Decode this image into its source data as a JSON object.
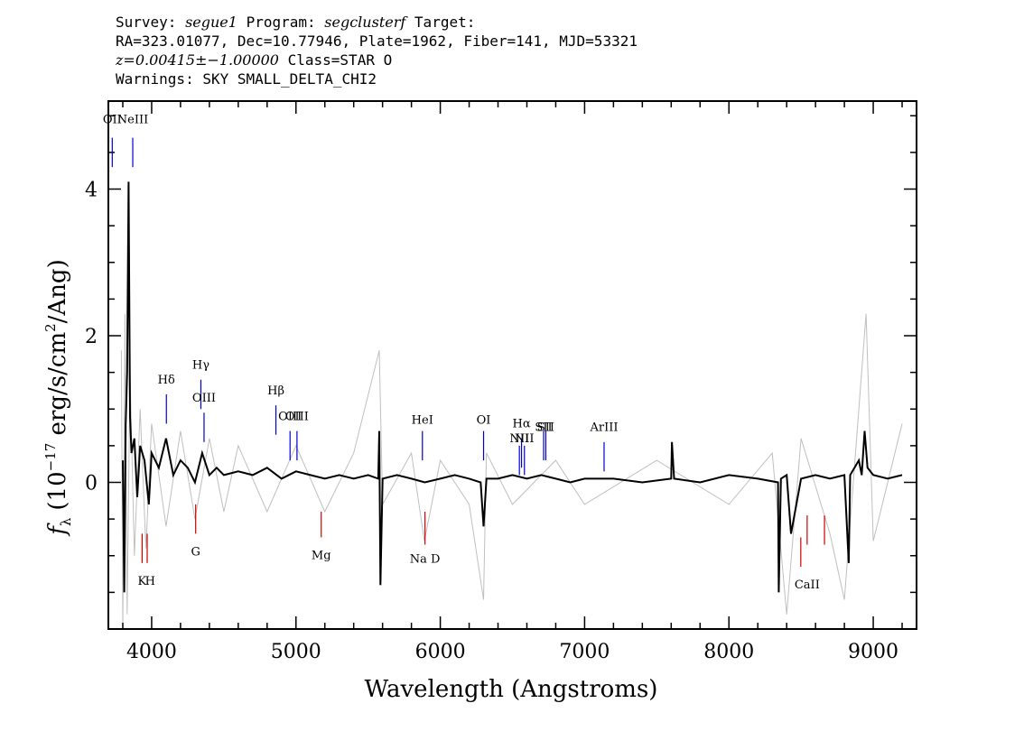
{
  "header": {
    "survey_label": "Survey:",
    "survey": "segue1",
    "program_label": "Program:",
    "program": "segclusterf",
    "target_label": "Target:",
    "line2": "RA=323.01077, Dec=10.77946, Plate=1962, Fiber=141, MJD=53321",
    "redshift": "z=0.00415±−1.00000",
    "class_text": "Class=STAR O",
    "warnings": "Warnings: SKY SMALL_DELTA_CHI2"
  },
  "chart_data": {
    "type": "line",
    "xlabel": "Wavelength (Angstroms)",
    "ylabel_main": "f",
    "ylabel_sub": "λ",
    "ylabel_unit": "(10",
    "ylabel_exp": "−17",
    "ylabel_rest1": " erg/s/cm",
    "ylabel_exp2": "2",
    "ylabel_rest2": "/Ang)",
    "xlim": [
      3700,
      9300
    ],
    "ylim": [
      -2.0,
      5.2
    ],
    "xticks": [
      4000,
      5000,
      6000,
      7000,
      8000,
      9000
    ],
    "yticks": [
      0,
      2,
      4
    ],
    "series": [
      {
        "color": "#000000",
        "x": [
          3800,
          3810,
          3820,
          3830,
          3840,
          3850,
          3860,
          3880,
          3900,
          3920,
          3950,
          3980,
          4000,
          4050,
          4100,
          4150,
          4200,
          4250,
          4300,
          4350,
          4400,
          4450,
          4500,
          4600,
          4700,
          4800,
          4900,
          5000,
          5100,
          5200,
          5300,
          5400,
          5500,
          5570,
          5577,
          5585,
          5600,
          5700,
          5800,
          5893,
          6000,
          6100,
          6200,
          6280,
          6300,
          6320,
          6400,
          6500,
          6600,
          6700,
          6800,
          6900,
          7000,
          7200,
          7400,
          7600,
          7605,
          7620,
          7800,
          8000,
          8200,
          8340,
          8345,
          8360,
          8400,
          8430,
          8500,
          8600,
          8700,
          8800,
          8830,
          8840,
          8900,
          8920,
          8940,
          8960,
          9000,
          9100,
          9200
        ],
        "values": [
          0.3,
          -1.5,
          0.8,
          1.5,
          4.1,
          0.9,
          0.4,
          0.6,
          -0.2,
          0.5,
          0.3,
          -0.3,
          0.4,
          0.2,
          0.6,
          0.1,
          0.3,
          0.2,
          0.0,
          0.4,
          0.1,
          0.2,
          0.1,
          0.15,
          0.1,
          0.2,
          0.05,
          0.15,
          0.1,
          0.05,
          0.1,
          0.05,
          0.1,
          0.05,
          0.7,
          -1.4,
          0.05,
          0.1,
          0.05,
          0.0,
          0.05,
          0.1,
          0.05,
          0.0,
          -0.6,
          0.05,
          0.05,
          0.1,
          0.05,
          0.1,
          0.05,
          0.0,
          0.05,
          0.05,
          0.0,
          0.05,
          0.55,
          0.05,
          0.0,
          0.1,
          0.05,
          0.0,
          -1.5,
          0.05,
          0.1,
          -0.7,
          0.05,
          0.1,
          0.05,
          0.1,
          -1.1,
          0.1,
          0.3,
          0.1,
          0.7,
          0.2,
          0.1,
          0.05,
          0.1
        ]
      },
      {
        "color": "#bfbfbf",
        "x": [
          3790,
          3800,
          3815,
          3830,
          3850,
          3880,
          3920,
          3960,
          4000,
          4100,
          4200,
          4300,
          4400,
          4500,
          4600,
          4800,
          5000,
          5200,
          5400,
          5577,
          5600,
          5800,
          5890,
          6000,
          6200,
          6300,
          6320,
          6500,
          6800,
          7000,
          7500,
          8000,
          8300,
          8400,
          8500,
          8700,
          8800,
          8900,
          8950,
          9000,
          9200
        ],
        "values": [
          1.8,
          -2.0,
          2.3,
          -1.8,
          1.5,
          -1.0,
          1.0,
          -0.9,
          0.8,
          -0.6,
          0.7,
          -0.5,
          0.6,
          -0.4,
          0.5,
          -0.4,
          0.5,
          -0.4,
          0.4,
          1.8,
          -0.3,
          0.4,
          -0.8,
          0.3,
          -0.3,
          -1.6,
          0.4,
          -0.3,
          0.3,
          -0.3,
          0.3,
          -0.3,
          0.4,
          -1.8,
          0.6,
          -0.7,
          -1.6,
          1.0,
          2.3,
          -0.8,
          0.8
        ]
      }
    ],
    "emission_lines": [
      {
        "label": "OII",
        "x": 3727
      },
      {
        "label": "NeIII",
        "x": 3869
      },
      {
        "label": "Hδ",
        "x": 4102
      },
      {
        "label": "Hγ",
        "x": 4341
      },
      {
        "label": "OIII",
        "x": 4363
      },
      {
        "label": "Hβ",
        "x": 4861
      },
      {
        "label": "OIII",
        "x": 4959
      },
      {
        "label": "OIII",
        "x": 5007
      },
      {
        "label": "HeI",
        "x": 5876
      },
      {
        "label": "OI",
        "x": 6300
      },
      {
        "label": "NII",
        "x": 6548
      },
      {
        "label": "Hα",
        "x": 6563
      },
      {
        "label": "NII",
        "x": 6583
      },
      {
        "label": "SII",
        "x": 6716
      },
      {
        "label": "SII",
        "x": 6731
      },
      {
        "label": "ArIII",
        "x": 7135
      }
    ],
    "absorption_lines": [
      {
        "label": "K",
        "x": 3934
      },
      {
        "label": "H",
        "x": 3969
      },
      {
        "label": "G",
        "x": 4305
      },
      {
        "label": "Mg",
        "x": 5175
      },
      {
        "label": "Na D",
        "x": 5894
      },
      {
        "label": "CaII",
        "x": 8498
      },
      {
        "label": "CaII",
        "x": 8542
      },
      {
        "label": "CaII",
        "x": 8662
      }
    ],
    "emission_color": "#0000cc",
    "absorption_color": "#cc0000"
  }
}
